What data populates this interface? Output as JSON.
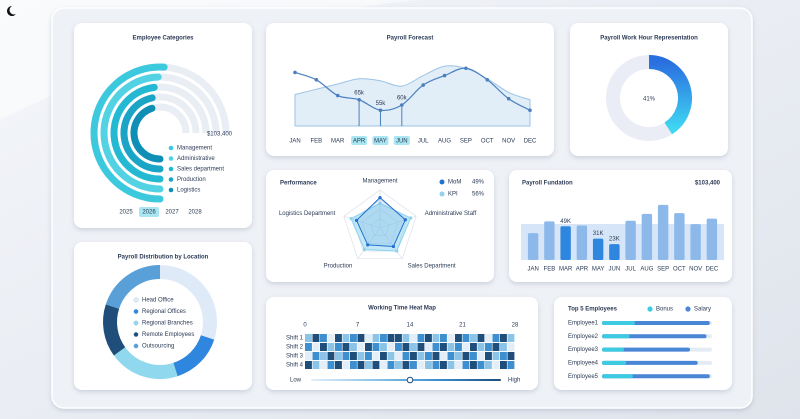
{
  "chart_data": [
    {
      "type": "radial_bar",
      "title": "Employee Categories",
      "categories": [
        "Management",
        "Administrative",
        "Sales department",
        "Production",
        "Logistics"
      ],
      "values": [
        68,
        66,
        64,
        62,
        60
      ],
      "colors": [
        "#3cc8dd",
        "#52d2e2",
        "#24b9d2",
        "#1aa4c6",
        "#0f8fb5"
      ],
      "xlim": [
        0,
        100
      ],
      "total": {
        "value": 103400,
        "label": "$103,400"
      },
      "years": [
        2025,
        2026,
        2027,
        2028
      ],
      "selected_year": 2026
    },
    {
      "type": "line",
      "title": "Payroll Forecast",
      "categories": [
        "JAN",
        "FEB",
        "MAR",
        "APR",
        "MAY",
        "JUN",
        "JUL",
        "AUG",
        "SEP",
        "OCT",
        "NOV",
        "DEC"
      ],
      "series": [
        {
          "color": "#4a7fc0",
          "values": [
            91000,
            84000,
            69000,
            65000,
            55000,
            60000,
            79000,
            88000,
            95000,
            84000,
            66000,
            55000
          ],
          "value_labels": [
            null,
            null,
            null,
            "65k",
            "55k",
            "60k",
            null,
            null,
            null,
            null,
            null,
            null
          ]
        },
        {
          "color": "#9cc3e6",
          "area": true,
          "values": [
            70000,
            75000,
            80000,
            85000,
            83000,
            78000,
            88000,
            97000,
            95000,
            85000,
            72000,
            65000
          ]
        }
      ],
      "ylim": [
        40000,
        100000
      ]
    },
    {
      "type": "donut",
      "title": "Payroll Work Hour Representation",
      "values": [
        41
      ],
      "value_labels": [
        "41%"
      ],
      "ylim": [
        0,
        100
      ],
      "colors": [
        "#2a6fe0",
        "#3fd6f2"
      ]
    },
    {
      "type": "radar",
      "title": "Performance",
      "categories": [
        "Management",
        "Administrative Staff",
        "Sales Department",
        "Production",
        "Logistics Department"
      ],
      "series": [
        {
          "name": "MoM",
          "color": "#2470d0",
          "values": [
            80,
            70,
            60,
            55,
            65
          ],
          "summary": {
            "value": 49,
            "label": "49%"
          }
        },
        {
          "name": "KPI",
          "color": "#8fd3ee",
          "values": [
            65,
            85,
            75,
            70,
            80
          ],
          "summary": {
            "value": 56,
            "label": "56%"
          }
        }
      ],
      "rlim": [
        0,
        100
      ]
    },
    {
      "type": "bar",
      "title": "Payroll Fundation",
      "total": {
        "value": 103400,
        "label": "$103,400"
      },
      "categories": [
        "JAN",
        "FEB",
        "MAR",
        "APR",
        "MAY",
        "JUN",
        "JUL",
        "AUG",
        "SEP",
        "OCT",
        "NOV",
        "DEC"
      ],
      "values": [
        39000,
        56000,
        49000,
        50000,
        31000,
        23000,
        57000,
        67000,
        80000,
        68000,
        52000,
        60000
      ],
      "value_labels": [
        null,
        null,
        "49K",
        null,
        "31K",
        "23K",
        null,
        null,
        null,
        null,
        null,
        null
      ],
      "color": "#8db8ea",
      "highlight_color": "#2e86de",
      "ylim": [
        0,
        90000
      ]
    },
    {
      "type": "pie",
      "title": "Payroll Distribution by Location",
      "categories": [
        "Head Office",
        "Regional Offices",
        "Regional Branches",
        "Remote Employees",
        "Outsourcing"
      ],
      "values": [
        30,
        15,
        20,
        15,
        20
      ],
      "colors": [
        "#dfeaf8",
        "#2e86de",
        "#8fd8ee",
        "#1e4e79",
        "#5aa0d8"
      ]
    },
    {
      "type": "heatmap",
      "title": "Working Time Heat Map",
      "rows": [
        "Shift 1",
        "Shift 2",
        "Shift 3",
        "Shift 4"
      ],
      "values": [
        [
          1,
          3,
          2,
          0,
          3,
          1,
          2,
          3,
          0,
          1,
          2,
          3,
          3,
          1,
          0,
          2,
          3,
          1,
          2,
          0,
          3,
          2,
          1,
          3,
          0,
          2,
          3,
          1
        ],
        [
          2,
          0,
          3,
          1,
          2,
          3,
          1,
          0,
          3,
          2,
          1,
          0,
          2,
          3,
          1,
          3,
          0,
          2,
          3,
          1,
          2,
          0,
          3,
          1,
          2,
          3,
          1,
          0
        ],
        [
          0,
          2,
          1,
          3,
          1,
          2,
          3,
          1,
          2,
          0,
          3,
          1,
          0,
          2,
          3,
          1,
          2,
          3,
          0,
          2,
          1,
          3,
          2,
          0,
          3,
          1,
          2,
          3
        ],
        [
          3,
          1,
          0,
          2,
          3,
          0,
          2,
          3,
          1,
          3,
          0,
          2,
          1,
          3,
          2,
          0,
          1,
          2,
          3,
          1,
          0,
          2,
          3,
          2,
          1,
          0,
          3,
          2
        ]
      ],
      "xlim": [
        0,
        28
      ],
      "xticks": [
        0,
        7,
        14,
        21,
        28
      ],
      "colors": [
        "#e3eef8",
        "#8cc4e8",
        "#3d8fcf",
        "#1e4e79"
      ],
      "legend": [
        "Low",
        "High"
      ]
    },
    {
      "type": "hbar",
      "title": "Top 5 Employees",
      "categories": [
        "Employee1",
        "Employee2",
        "Employee3",
        "Employee4",
        "Employee5"
      ],
      "series": [
        {
          "name": "Bonus",
          "color": "#3ccbe0",
          "values": [
            30,
            25,
            20,
            22,
            28
          ]
        },
        {
          "name": "Salary",
          "color": "#4a86d6",
          "values": [
            98,
            95,
            80,
            87,
            98
          ]
        }
      ],
      "xlim": [
        0,
        100
      ]
    }
  ]
}
